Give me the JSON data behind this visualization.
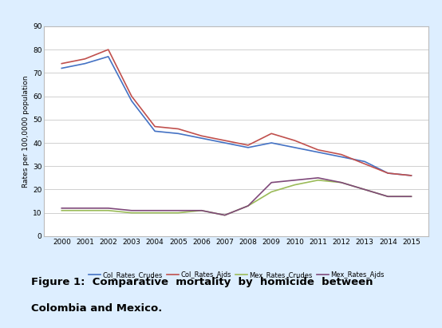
{
  "years": [
    2000,
    2001,
    2002,
    2003,
    2004,
    2005,
    2006,
    2007,
    2008,
    2009,
    2010,
    2011,
    2012,
    2013,
    2014,
    2015
  ],
  "col_rates_crude": [
    72,
    74,
    77,
    58,
    45,
    44,
    42,
    40,
    38,
    40,
    38,
    36,
    34,
    32,
    27,
    26
  ],
  "col_rates_ajds": [
    74,
    76,
    80,
    60,
    47,
    46,
    43,
    41,
    39,
    44,
    41,
    37,
    35,
    31,
    27,
    26
  ],
  "mex_rates_crude": [
    11,
    11,
    11,
    10,
    10,
    10,
    11,
    9,
    13,
    19,
    22,
    24,
    23,
    20,
    17,
    17
  ],
  "mex_rates_ajds": [
    12,
    12,
    12,
    11,
    11,
    11,
    11,
    9,
    13,
    23,
    24,
    25,
    23,
    20,
    17,
    17
  ],
  "col_crude_color": "#4472C4",
  "col_ajds_color": "#C0504D",
  "mex_crude_color": "#9BBB59",
  "mex_ajds_color": "#7F497A",
  "ylabel": "Rates per 100,0000 population",
  "ylim": [
    0,
    90
  ],
  "yticks": [
    0,
    10,
    20,
    30,
    40,
    50,
    60,
    70,
    80,
    90
  ],
  "legend_labels": [
    "Col_Rates_Crudes",
    "Col_Rates_Ajds",
    "Mex_Rates_Crudes",
    "Mex_Rates_Ajds"
  ],
  "bg_color": "#DDEEFF",
  "plot_bg_color": "#FFFFFF",
  "grid_color": "#D0D0D0",
  "border_color": "#A8C4E0",
  "caption_line1": "Figure 1:  Comparative  mortality  by  homicide  between",
  "caption_line2": "Colombia and Mexico."
}
